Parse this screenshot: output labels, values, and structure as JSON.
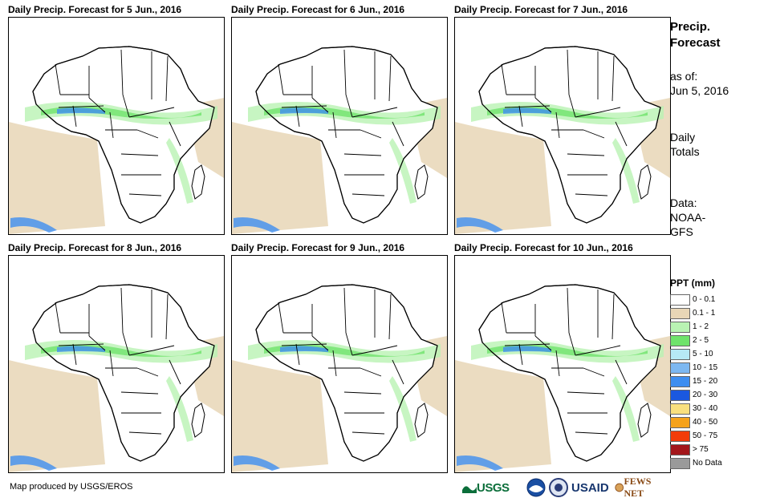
{
  "panels": [
    {
      "title": "Daily Precip. Forecast for 5 Jun., 2016"
    },
    {
      "title": "Daily Precip. Forecast for 6 Jun., 2016"
    },
    {
      "title": "Daily Precip. Forecast for 7 Jun., 2016"
    },
    {
      "title": "Daily Precip. Forecast for 8 Jun., 2016"
    },
    {
      "title": "Daily Precip. Forecast for 9 Jun., 2016"
    },
    {
      "title": "Daily Precip. Forecast for 10 Jun., 2016"
    }
  ],
  "side": {
    "title_line1": "Precip.",
    "title_line2": "Forecast",
    "asof_line1": "as of:",
    "asof_line2": "Jun 5, 2016",
    "totals_line1": "Daily",
    "totals_line2": "Totals",
    "data_line1": "Data:",
    "data_line2": "NOAA-",
    "data_line3": "GFS"
  },
  "legend": {
    "title": "PPT (mm)",
    "items": [
      {
        "label": "0 - 0.1",
        "color": "#ffffff"
      },
      {
        "label": "0.1 - 1",
        "color": "#e8d6b6"
      },
      {
        "label": "1 - 2",
        "color": "#b9f3b3"
      },
      {
        "label": "2 - 5",
        "color": "#6fe36b"
      },
      {
        "label": "5 - 10",
        "color": "#b6e9f5"
      },
      {
        "label": "10 - 15",
        "color": "#7db8f1"
      },
      {
        "label": "15 - 20",
        "color": "#3e8ef0"
      },
      {
        "label": "20 - 30",
        "color": "#1a58e0"
      },
      {
        "label": "30 - 40",
        "color": "#f9e07e"
      },
      {
        "label": "40 - 50",
        "color": "#f5a21b"
      },
      {
        "label": "50 - 75",
        "color": "#f23c0a"
      },
      {
        "label": "> 75",
        "color": "#a3161a"
      },
      {
        "label": "No Data",
        "color": "#9a9a9a"
      }
    ]
  },
  "footer": {
    "credit": "Map produced by USGS/EROS",
    "logo_usgs": "USGS",
    "logo_usaid": "USAID",
    "logo_fews": "FEWS NET"
  },
  "colors": {
    "land": "#ffffff",
    "border": "#000000",
    "dry_ocean": "#e8d6b6",
    "light_rain": "#b9f3b3",
    "moderate_rain": "#6fe36b",
    "heavy_rain": "#3e8ef0"
  }
}
